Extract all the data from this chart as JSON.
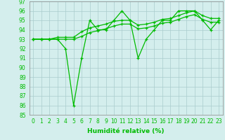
{
  "x_labels": [
    0,
    1,
    2,
    3,
    4,
    5,
    6,
    7,
    8,
    9,
    10,
    11,
    12,
    13,
    14,
    15,
    16,
    17,
    18,
    19,
    20,
    21,
    22,
    23
  ],
  "line1_x": [
    0,
    1,
    2,
    3,
    4,
    5,
    6,
    7,
    8,
    9,
    10,
    11,
    12,
    13,
    14,
    15,
    16,
    17,
    18,
    19,
    20,
    21,
    22,
    23
  ],
  "line1_y": [
    93,
    93,
    93,
    93,
    92,
    86,
    91,
    95,
    94,
    94,
    95,
    96,
    95,
    91,
    93,
    94,
    95,
    95,
    96,
    96,
    96,
    95,
    94,
    95
  ],
  "line2_x": [
    0,
    1,
    2,
    3,
    4,
    5,
    6,
    7,
    8,
    9,
    10,
    11,
    12,
    13,
    14,
    15,
    16,
    17,
    18,
    19,
    20,
    21,
    22,
    23
  ],
  "line2_y": [
    93,
    93,
    93,
    93.2,
    93.2,
    93.2,
    93.8,
    94.2,
    94.4,
    94.6,
    94.9,
    95.0,
    95.0,
    94.5,
    94.6,
    94.8,
    95.1,
    95.2,
    95.5,
    95.8,
    96.0,
    95.5,
    95.2,
    95.2
  ],
  "line3_x": [
    0,
    1,
    2,
    3,
    4,
    5,
    6,
    7,
    8,
    9,
    10,
    11,
    12,
    13,
    14,
    15,
    16,
    17,
    18,
    19,
    20,
    21,
    22,
    23
  ],
  "line3_y": [
    93,
    93,
    93,
    93,
    93,
    93,
    93.3,
    93.7,
    93.9,
    94.1,
    94.4,
    94.6,
    94.6,
    94.1,
    94.2,
    94.4,
    94.7,
    94.8,
    95.1,
    95.4,
    95.6,
    95.1,
    94.8,
    94.8
  ],
  "ylim": [
    85,
    97
  ],
  "yticks": [
    85,
    86,
    87,
    88,
    89,
    90,
    91,
    92,
    93,
    94,
    95,
    96,
    97
  ],
  "xlim": [
    -0.5,
    23.5
  ],
  "xlabel": "Humidité relative (%)",
  "line_color": "#00bb00",
  "bg_color": "#d4eeed",
  "grid_color": "#aacccc",
  "marker": "+",
  "linewidth": 0.9,
  "fontsize_axis": 5.5,
  "fontsize_label": 6.5
}
